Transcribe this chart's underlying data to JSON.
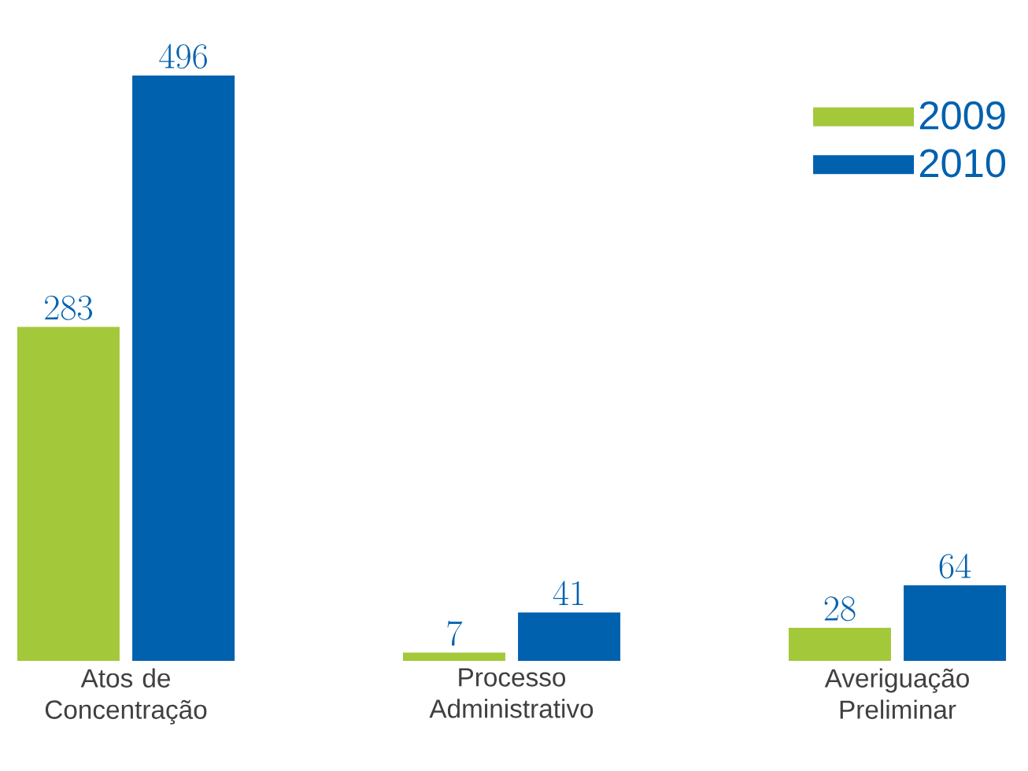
{
  "chart_data": {
    "type": "bar",
    "categories": [
      "Atos de Concentração",
      "Processo Administrativo",
      "Averiguação Preliminar"
    ],
    "series": [
      {
        "name": "2009",
        "color": "#a3c83a",
        "values": [
          283,
          7,
          28
        ]
      },
      {
        "name": "2010",
        "color": "#0061ae",
        "values": [
          496,
          41,
          64
        ]
      }
    ],
    "data_labels": true,
    "legend": "top right"
  }
}
